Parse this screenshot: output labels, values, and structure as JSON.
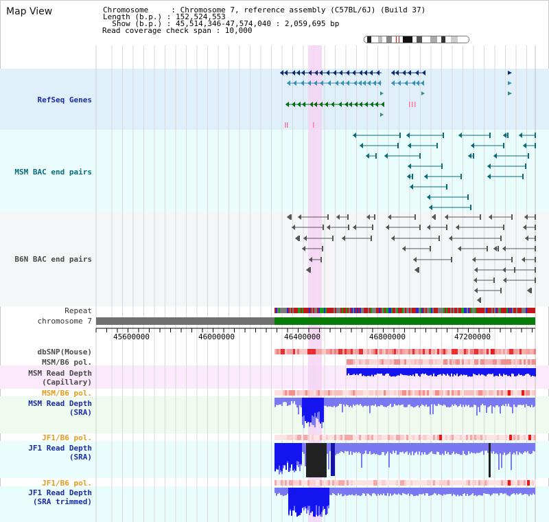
{
  "page_title": "Map View",
  "header": {
    "line1": "Chromosome     : Chromosome 7, reference assembly (C57BL/6J) (Build 37)",
    "line2": "Length (b.p.) : 152,524,553",
    "line3": "  Show (b.p.) : 45,514,346-47,574,040 : 2,059,695 bp",
    "line4": "Read coverage check span : 10,000"
  },
  "tracks": {
    "refseq": "RefSeq Genes",
    "msm_bac": "MSM BAC end pairs",
    "b6n_bac": "B6N BAC end pairs",
    "repeat": "Repeat",
    "chromosome": "chromosome 7",
    "dbsnp": "dbSNP(Mouse)",
    "msm_b6_pol_1": "MSM/B6 pol.",
    "msm_depth_cap_1": "MSM Read Depth",
    "msm_depth_cap_2": "(Capillary)",
    "msm_b6_pol_2": "MSM/B6 pol.",
    "msm_depth_sra_1": "MSM Read Depth",
    "msm_depth_sra_2": "(SRA)",
    "jf1_b6_pol_1": "JF1/B6 pol.",
    "jf1_depth_sra_1": "JF1 Read Depth",
    "jf1_depth_sra_2": "(SRA)",
    "jf1_b6_pol_2": "JF1/B6 pol.",
    "jf1_depth_trim_1": "JF1 Read Depth",
    "jf1_depth_trim_2": "(SRA trimmed)"
  },
  "axis": {
    "ticks": [
      "45600000",
      "46000000",
      "46400000",
      "46800000",
      "47200000"
    ]
  },
  "colors": {
    "refseq_bg": "#dff0fb",
    "bac_bg": "#e8fdfc",
    "b6n_bg": "#f4f6f8",
    "highlight": "#f5d4f5",
    "chrom_gray": "#707070",
    "chrom_green": "#0a7a0a",
    "depth_blue": "#1414ee",
    "depth_light": "#7a78f0",
    "snp_red": "#e81818"
  }
}
